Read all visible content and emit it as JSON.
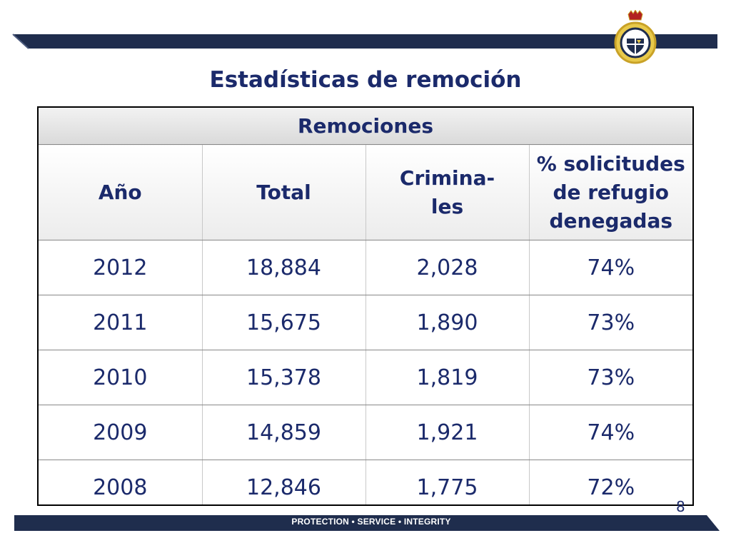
{
  "slide": {
    "title": "Estadísticas de remoción",
    "page_number": "8",
    "footer_motto": "PROTECTION • SERVICE • INTEGRITY"
  },
  "table": {
    "group_header": "Remociones",
    "columns": [
      "Año",
      "Total",
      "Crimina-\nles",
      "% solicitudes de refugio denegadas"
    ],
    "rows": [
      [
        "2012",
        "18,884",
        "2,028",
        "74%"
      ],
      [
        "2011",
        "15,675",
        "1,890",
        "73%"
      ],
      [
        "2010",
        "15,378",
        "1,819",
        "73%"
      ],
      [
        "2009",
        "14,859",
        "1,921",
        "74%"
      ],
      [
        "2008",
        "12,846",
        "1,775",
        "72%"
      ]
    ]
  },
  "colors": {
    "navy": "#1b2a6b",
    "band": "#1f2d4d",
    "emblem_gold": "#c9a227"
  }
}
